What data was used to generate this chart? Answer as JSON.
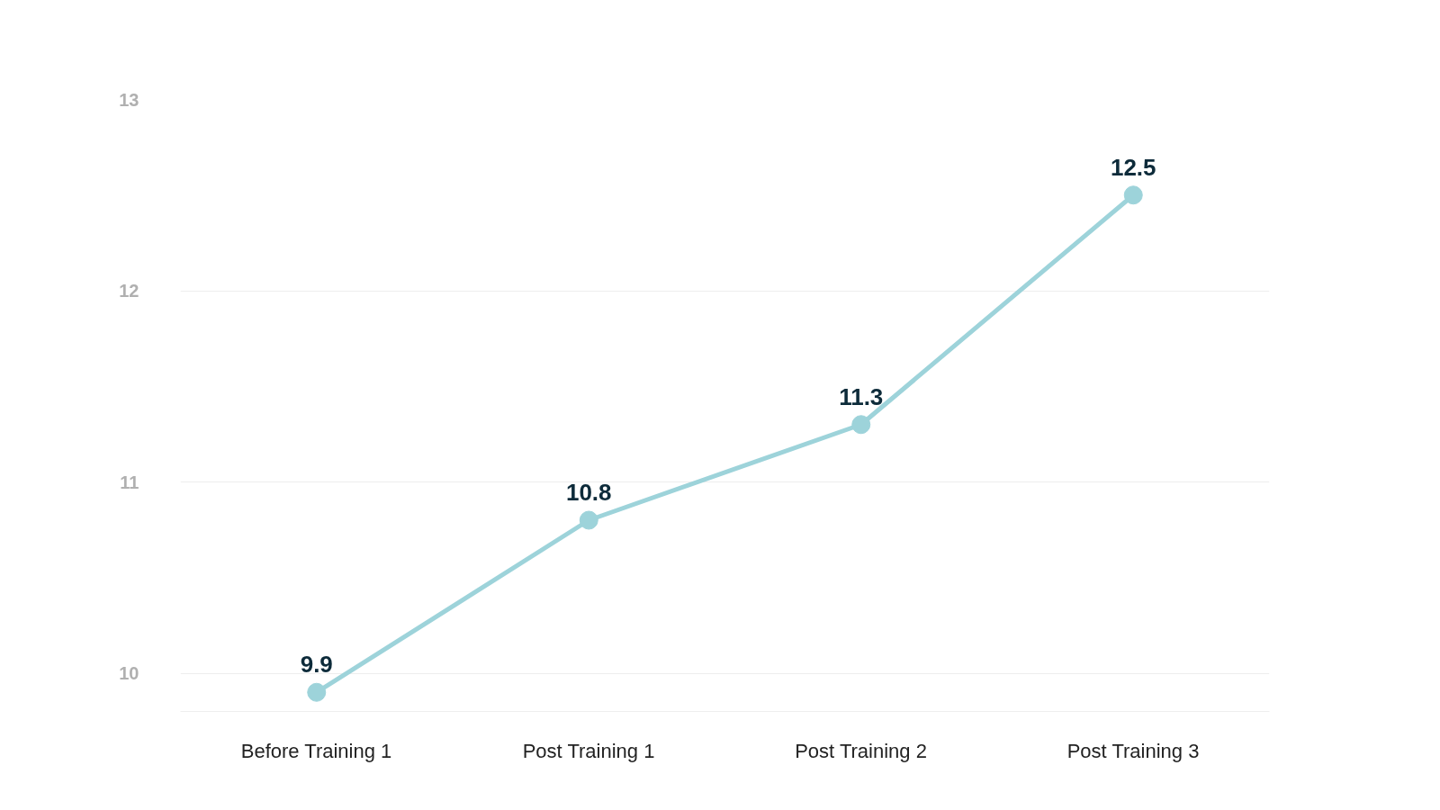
{
  "chart_data": {
    "type": "line",
    "categories": [
      "Before Training 1",
      "Post Training 1",
      "Post Training 2",
      "Post Training 3"
    ],
    "series": [
      {
        "color": "#9dd3da",
        "values": [
          9.9,
          10.8,
          11.3,
          12.5
        ]
      }
    ],
    "ylim": [
      9.8,
      13.0
    ],
    "yticks": [
      10,
      11,
      12,
      13
    ],
    "grid": "y",
    "data_labels": true,
    "marker": "circle",
    "line_style": "solid"
  }
}
